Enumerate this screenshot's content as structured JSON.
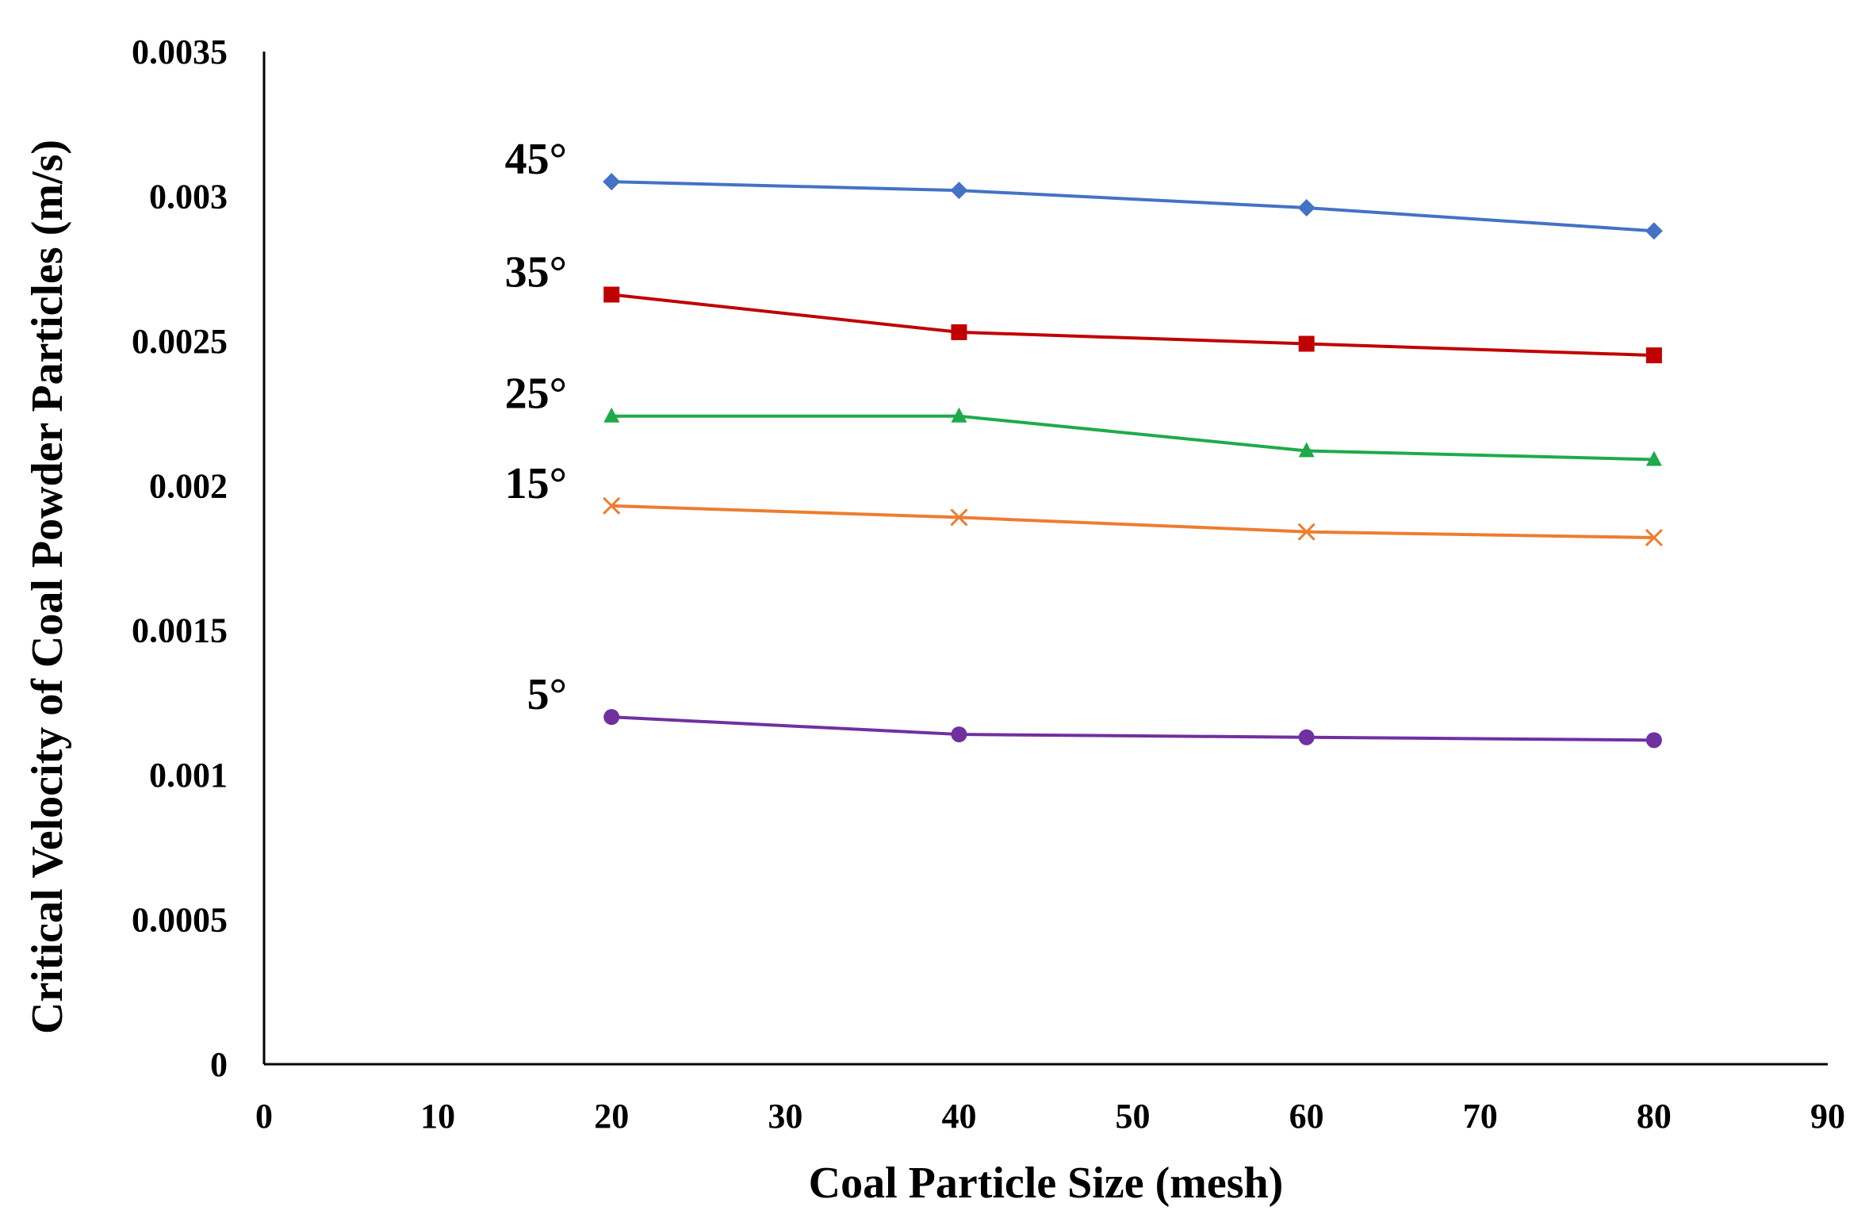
{
  "chart_data": {
    "type": "line",
    "title": "",
    "xlabel": "Coal Particle Size (mesh)",
    "ylabel": "Critical Velocity of Coal Powder Particles (m/s)",
    "xlim": [
      0,
      90
    ],
    "ylim": [
      0,
      0.0035
    ],
    "xticks": [
      "0",
      "10",
      "20",
      "30",
      "40",
      "50",
      "60",
      "70",
      "80",
      "90"
    ],
    "yticks": [
      "0",
      "0.0005",
      "0.001",
      "0.0015",
      "0.002",
      "0.0025",
      "0.003",
      "0.0035"
    ],
    "grid": false,
    "x": [
      20,
      40,
      60,
      80
    ],
    "series": [
      {
        "name": "45°",
        "color": "#4472C4",
        "marker": "diamond",
        "values": [
          0.00305,
          0.00302,
          0.00296,
          0.00288
        ]
      },
      {
        "name": "35°",
        "color": "#C00000",
        "marker": "square",
        "values": [
          0.00266,
          0.00253,
          0.00249,
          0.00245
        ]
      },
      {
        "name": "25°",
        "color": "#1FAA4A",
        "marker": "triangle",
        "values": [
          0.00224,
          0.00224,
          0.00212,
          0.00209
        ]
      },
      {
        "name": "15°",
        "color": "#ED7D31",
        "marker": "x",
        "values": [
          0.00193,
          0.00189,
          0.00184,
          0.00182
        ]
      },
      {
        "name": "5°",
        "color": "#7030A0",
        "marker": "circle",
        "values": [
          0.0012,
          0.00114,
          0.00113,
          0.00112
        ]
      }
    ]
  }
}
